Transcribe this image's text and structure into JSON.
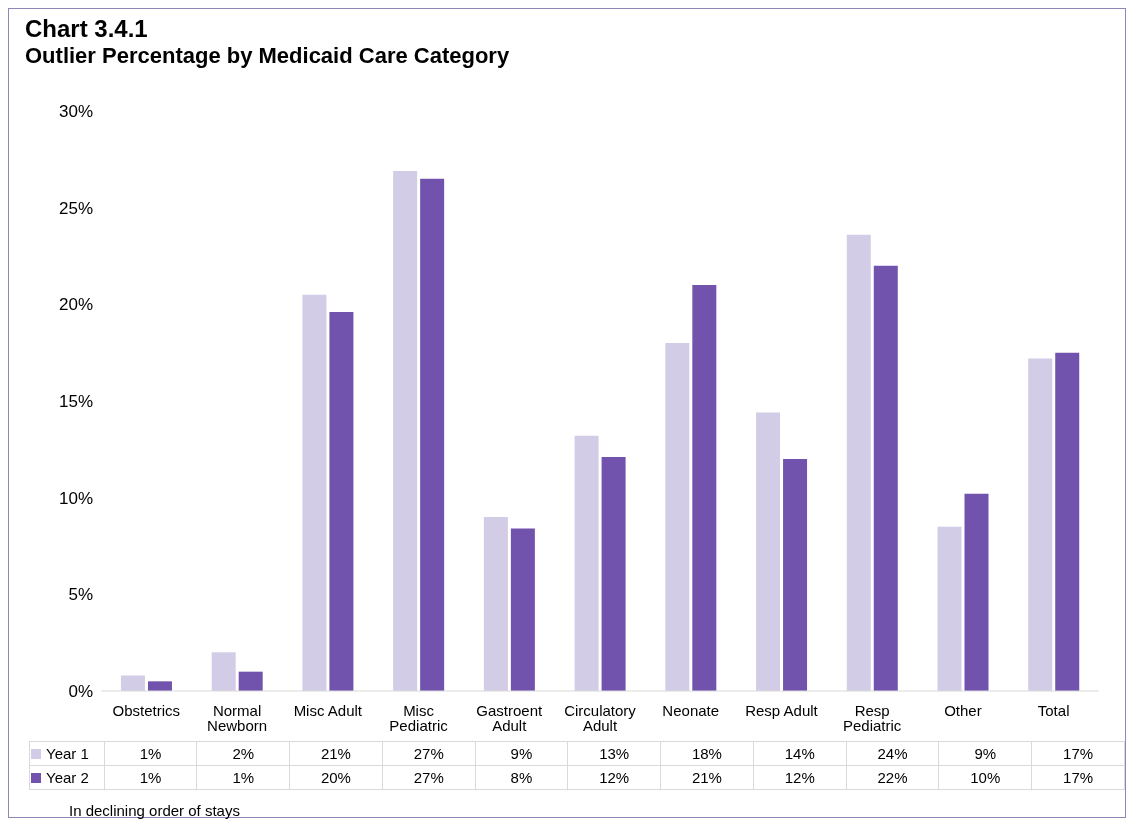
{
  "chart_data": {
    "type": "bar",
    "title": "Chart 3.4.1",
    "subtitle": "Outlier Percentage by Medicaid Care Category",
    "categories": [
      "Obstetrics",
      "Normal Newborn",
      "Misc Adult",
      "Misc Pediatric",
      "Gastroent Adult",
      "Circulatory Adult",
      "Neonate",
      "Resp Adult",
      "Resp Pediatric",
      "Other",
      "Total"
    ],
    "series": [
      {
        "name": "Year 1",
        "color": "#d3cce6",
        "values": [
          0.8,
          2.0,
          20.5,
          26.9,
          9.0,
          13.2,
          18.0,
          14.4,
          23.6,
          8.5,
          17.2
        ],
        "value_labels": [
          "1%",
          "2%",
          "21%",
          "27%",
          "9%",
          "13%",
          "18%",
          "14%",
          "24%",
          "9%",
          "17%"
        ]
      },
      {
        "name": "Year 2",
        "color": "#7153ad",
        "values": [
          0.5,
          1.0,
          19.6,
          26.5,
          8.4,
          12.1,
          21.0,
          12.0,
          22.0,
          10.2,
          17.5
        ],
        "value_labels": [
          "1%",
          "1%",
          "20%",
          "27%",
          "8%",
          "12%",
          "21%",
          "12%",
          "22%",
          "10%",
          "17%"
        ]
      }
    ],
    "ylim": [
      0,
      30
    ],
    "yticks": [
      {
        "value": 0,
        "label": "0%"
      },
      {
        "value": 5,
        "label": "5%"
      },
      {
        "value": 10,
        "label": "10%"
      },
      {
        "value": 15,
        "label": "15%"
      },
      {
        "value": 20,
        "label": "20%"
      },
      {
        "value": 25,
        "label": "25%"
      },
      {
        "value": 30,
        "label": "30%"
      }
    ],
    "legend": "bottom left",
    "annotations": [
      "In declining order of stays"
    ]
  }
}
